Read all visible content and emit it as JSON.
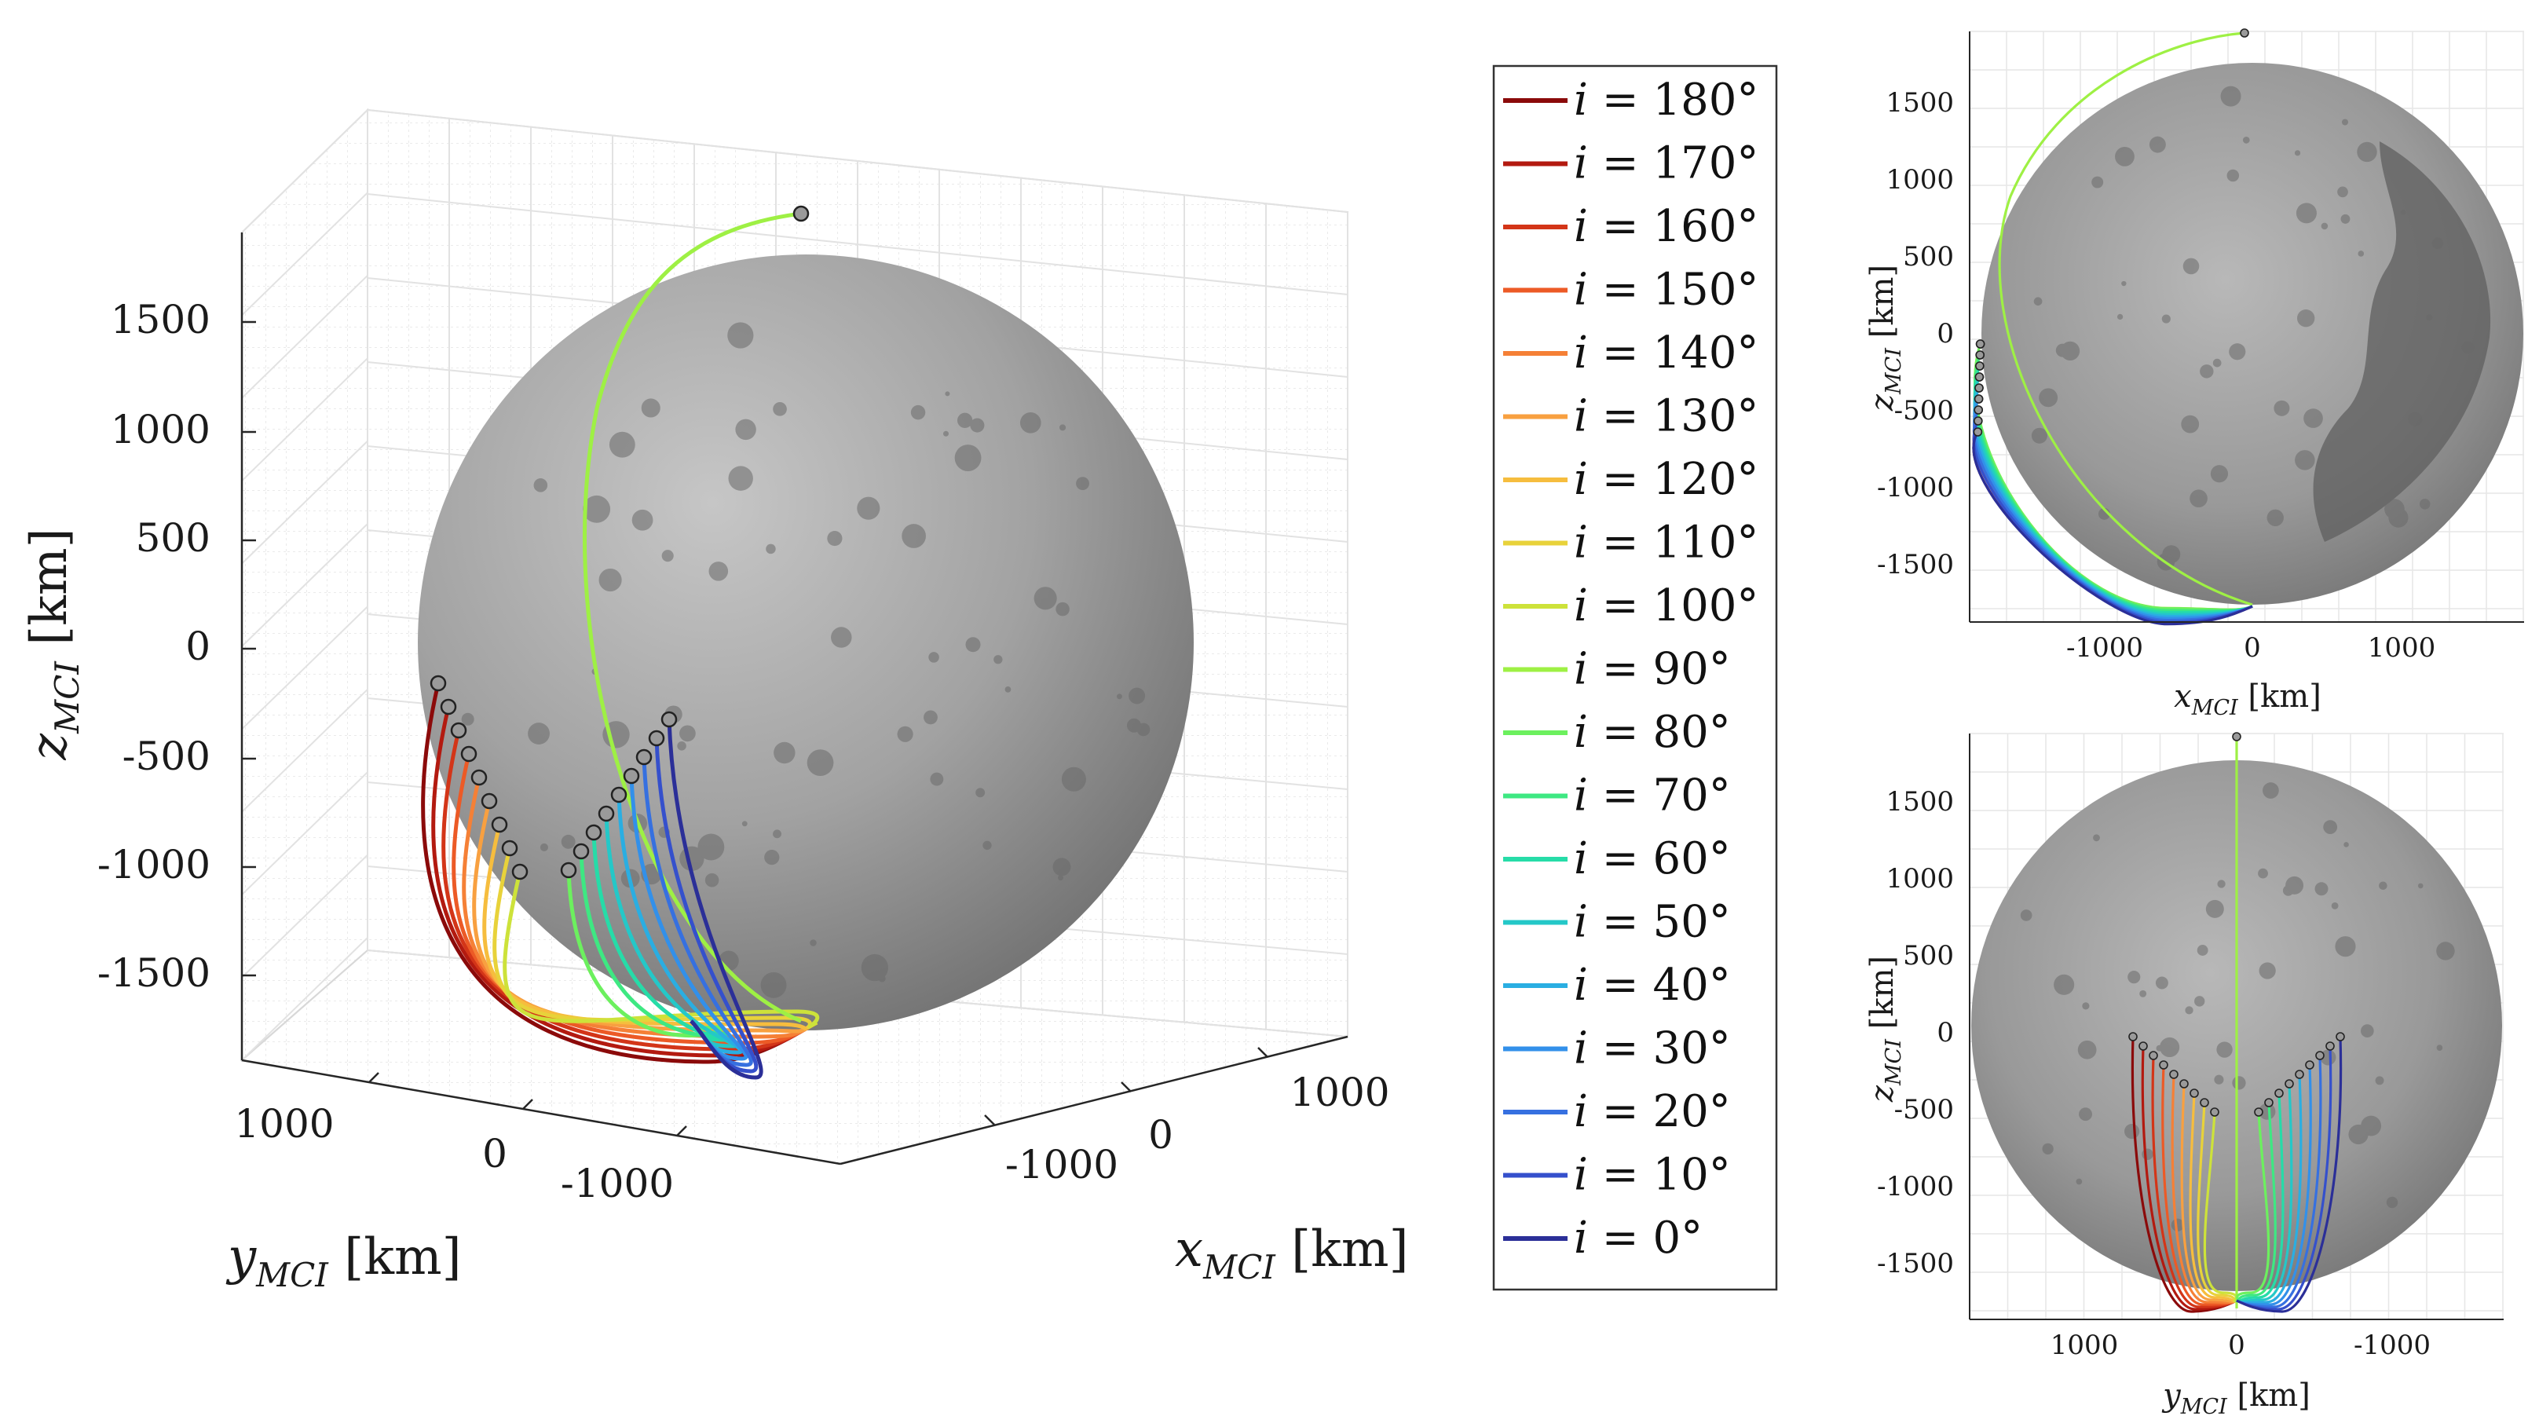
{
  "chart_data": [
    {
      "type": "line",
      "view": "3d",
      "xlabel": "x_MCI [km]",
      "ylabel": "y_MCI [km]",
      "zlabel": "z_MCI [km]",
      "x_ticks": [
        "1000",
        "0",
        "-1000"
      ],
      "y_ticks": [
        "1000",
        "0",
        "-1000"
      ],
      "z_ticks": [
        "1500",
        "1000",
        "500",
        "0",
        "-500",
        "-1000",
        "-1500"
      ],
      "grid": true,
      "background_body": "Moon (radius ≈ 1737 km)"
    },
    {
      "type": "line",
      "view": "x-z",
      "xlabel": "x_MCI [km]",
      "ylabel": "z_MCI [km]",
      "x_ticks": [
        "-1000",
        "0",
        "1000"
      ],
      "y_ticks": [
        "1500",
        "1000",
        "500",
        "0",
        "-500",
        "-1000",
        "-1500"
      ],
      "xlim": [
        -1900,
        1750
      ],
      "ylim": [
        -1850,
        1950
      ],
      "grid": true
    },
    {
      "type": "line",
      "view": "y-z",
      "xlabel": "y_MCI [km]",
      "ylabel": "z_MCI [km]",
      "x_ticks": [
        "1000",
        "0",
        "-1000"
      ],
      "y_ticks": [
        "1500",
        "1000",
        "500",
        "0",
        "-500",
        "-1000",
        "-1500"
      ],
      "xlim": [
        1750,
        -1750
      ],
      "ylim": [
        -1900,
        1950
      ],
      "grid": true
    }
  ],
  "legend": {
    "placement": "center",
    "series": [
      {
        "label": "i = 180°",
        "inc": 180,
        "color": "#8b0a0a"
      },
      {
        "label": "i = 170°",
        "inc": 170,
        "color": "#b31a10"
      },
      {
        "label": "i = 160°",
        "inc": 160,
        "color": "#d33518"
      },
      {
        "label": "i = 150°",
        "inc": 150,
        "color": "#ec5a26"
      },
      {
        "label": "i = 140°",
        "inc": 140,
        "color": "#f58036"
      },
      {
        "label": "i = 130°",
        "inc": 130,
        "color": "#f8a040"
      },
      {
        "label": "i = 120°",
        "inc": 120,
        "color": "#f6bd3e"
      },
      {
        "label": "i = 110°",
        "inc": 110,
        "color": "#e8d23a"
      },
      {
        "label": "i = 100°",
        "inc": 100,
        "color": "#cde23a"
      },
      {
        "label": "i = 90°",
        "inc": 90,
        "color": "#9ef044"
      },
      {
        "label": "i = 80°",
        "inc": 80,
        "color": "#6cf05e"
      },
      {
        "label": "i = 70°",
        "inc": 70,
        "color": "#3ee882"
      },
      {
        "label": "i = 60°",
        "inc": 60,
        "color": "#26dca8"
      },
      {
        "label": "i = 50°",
        "inc": 50,
        "color": "#24c8c8"
      },
      {
        "label": "i = 40°",
        "inc": 40,
        "color": "#2aaee2"
      },
      {
        "label": "i = 30°",
        "inc": 30,
        "color": "#3290ea"
      },
      {
        "label": "i = 20°",
        "inc": 20,
        "color": "#3670e0"
      },
      {
        "label": "i = 10°",
        "inc": 10,
        "color": "#3550cc"
      },
      {
        "label": "i = 0°",
        "inc": 0,
        "color": "#2b2f98"
      }
    ]
  },
  "moon_colors": {
    "light": "#bdbdbd",
    "mid": "#8e8e8e",
    "dark": "#5a5a5a"
  }
}
